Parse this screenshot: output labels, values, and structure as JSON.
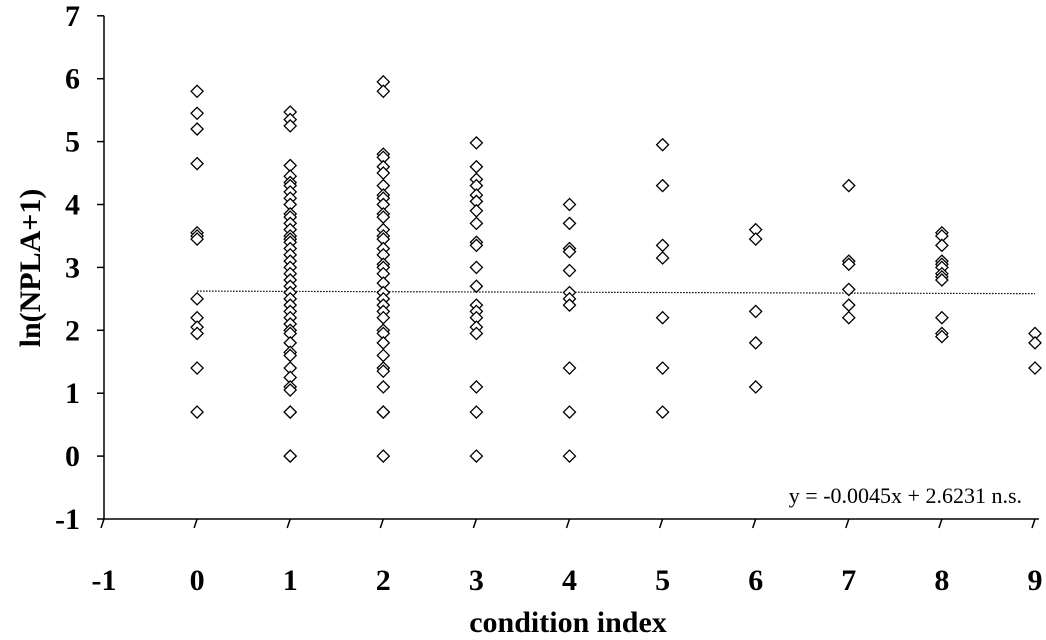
{
  "chart_data": {
    "type": "scatter",
    "title": "",
    "xlabel": "condition index",
    "ylabel": "ln(NPLA+1)",
    "xlim": [
      -1,
      9
    ],
    "ylim": [
      -1,
      7
    ],
    "x_ticks": [
      "-1",
      "0",
      "1",
      "2",
      "3",
      "4",
      "5",
      "6",
      "7",
      "8",
      "9"
    ],
    "y_ticks": [
      "-1",
      "0",
      "1",
      "2",
      "3",
      "4",
      "5",
      "6",
      "7"
    ],
    "grid": false,
    "legend": "none",
    "marker": "open-diamond",
    "trendline": {
      "slope": -0.0045,
      "intercept": 2.6231,
      "style": "dotted"
    },
    "annotation": "y = -0.0045x + 2.6231   n.s.",
    "series": [
      {
        "points": [
          [
            0,
            5.8
          ],
          [
            0,
            5.45
          ],
          [
            0,
            5.2
          ],
          [
            0,
            4.65
          ],
          [
            0,
            3.55
          ],
          [
            0,
            3.5
          ],
          [
            0,
            3.45
          ],
          [
            0,
            2.5
          ],
          [
            0,
            2.2
          ],
          [
            0,
            2.05
          ],
          [
            0,
            1.95
          ],
          [
            0,
            1.4
          ],
          [
            0,
            0.7
          ],
          [
            1,
            5.47
          ],
          [
            1,
            5.35
          ],
          [
            1,
            5.25
          ],
          [
            1,
            4.62
          ],
          [
            1,
            4.45
          ],
          [
            1,
            4.35
          ],
          [
            1,
            4.3
          ],
          [
            1,
            4.2
          ],
          [
            1,
            4.1
          ],
          [
            1,
            4.0
          ],
          [
            1,
            3.85
          ],
          [
            1,
            3.8
          ],
          [
            1,
            3.7
          ],
          [
            1,
            3.6
          ],
          [
            1,
            3.5
          ],
          [
            1,
            3.45
          ],
          [
            1,
            3.4
          ],
          [
            1,
            3.3
          ],
          [
            1,
            3.2
          ],
          [
            1,
            3.1
          ],
          [
            1,
            3.0
          ],
          [
            1,
            2.9
          ],
          [
            1,
            2.8
          ],
          [
            1,
            2.7
          ],
          [
            1,
            2.6
          ],
          [
            1,
            2.5
          ],
          [
            1,
            2.4
          ],
          [
            1,
            2.3
          ],
          [
            1,
            2.2
          ],
          [
            1,
            2.1
          ],
          [
            1,
            2.0
          ],
          [
            1,
            1.95
          ],
          [
            1,
            1.8
          ],
          [
            1,
            1.65
          ],
          [
            1,
            1.6
          ],
          [
            1,
            1.4
          ],
          [
            1,
            1.25
          ],
          [
            1,
            1.1
          ],
          [
            1,
            1.05
          ],
          [
            1,
            0.7
          ],
          [
            1,
            0.7
          ],
          [
            1,
            0.0
          ],
          [
            1,
            0.0
          ],
          [
            2,
            5.95
          ],
          [
            2,
            5.8
          ],
          [
            2,
            4.8
          ],
          [
            2,
            4.75
          ],
          [
            2,
            4.6
          ],
          [
            2,
            4.5
          ],
          [
            2,
            4.3
          ],
          [
            2,
            4.15
          ],
          [
            2,
            4.1
          ],
          [
            2,
            4.0
          ],
          [
            2,
            3.85
          ],
          [
            2,
            3.8
          ],
          [
            2,
            3.6
          ],
          [
            2,
            3.5
          ],
          [
            2,
            3.45
          ],
          [
            2,
            3.3
          ],
          [
            2,
            3.2
          ],
          [
            2,
            3.05
          ],
          [
            2,
            3.0
          ],
          [
            2,
            2.9
          ],
          [
            2,
            2.75
          ],
          [
            2,
            2.6
          ],
          [
            2,
            2.5
          ],
          [
            2,
            2.4
          ],
          [
            2,
            2.3
          ],
          [
            2,
            2.2
          ],
          [
            2,
            2.0
          ],
          [
            2,
            1.95
          ],
          [
            2,
            1.8
          ],
          [
            2,
            1.6
          ],
          [
            2,
            1.4
          ],
          [
            2,
            1.35
          ],
          [
            2,
            1.1
          ],
          [
            2,
            0.7
          ],
          [
            2,
            0.7
          ],
          [
            2,
            0.0
          ],
          [
            3,
            4.98
          ],
          [
            3,
            4.6
          ],
          [
            3,
            4.4
          ],
          [
            3,
            4.3
          ],
          [
            3,
            4.15
          ],
          [
            3,
            4.05
          ],
          [
            3,
            3.9
          ],
          [
            3,
            3.7
          ],
          [
            3,
            3.4
          ],
          [
            3,
            3.35
          ],
          [
            3,
            3.0
          ],
          [
            3,
            2.7
          ],
          [
            3,
            2.4
          ],
          [
            3,
            2.3
          ],
          [
            3,
            2.2
          ],
          [
            3,
            2.05
          ],
          [
            3,
            1.95
          ],
          [
            3,
            1.1
          ],
          [
            3,
            0.7
          ],
          [
            3,
            0.0
          ],
          [
            4,
            4.0
          ],
          [
            4,
            3.7
          ],
          [
            4,
            3.3
          ],
          [
            4,
            3.25
          ],
          [
            4,
            2.95
          ],
          [
            4,
            2.6
          ],
          [
            4,
            2.5
          ],
          [
            4,
            2.4
          ],
          [
            4,
            1.4
          ],
          [
            4,
            0.7
          ],
          [
            4,
            0.0
          ],
          [
            5,
            4.95
          ],
          [
            5,
            4.3
          ],
          [
            5,
            3.35
          ],
          [
            5,
            3.15
          ],
          [
            5,
            2.2
          ],
          [
            5,
            1.4
          ],
          [
            5,
            0.7
          ],
          [
            6,
            3.6
          ],
          [
            6,
            3.45
          ],
          [
            6,
            2.3
          ],
          [
            6,
            1.8
          ],
          [
            6,
            1.1
          ],
          [
            7,
            4.3
          ],
          [
            7,
            3.1
          ],
          [
            7,
            3.05
          ],
          [
            7,
            2.65
          ],
          [
            7,
            2.4
          ],
          [
            7,
            2.2
          ],
          [
            8,
            3.55
          ],
          [
            8,
            3.5
          ],
          [
            8,
            3.35
          ],
          [
            8,
            3.1
          ],
          [
            8,
            3.05
          ],
          [
            8,
            3.0
          ],
          [
            8,
            2.9
          ],
          [
            8,
            2.85
          ],
          [
            8,
            2.8
          ],
          [
            8,
            2.2
          ],
          [
            8,
            1.95
          ],
          [
            8,
            1.9
          ],
          [
            9,
            1.95
          ],
          [
            9,
            1.8
          ],
          [
            9,
            1.4
          ]
        ]
      }
    ]
  }
}
